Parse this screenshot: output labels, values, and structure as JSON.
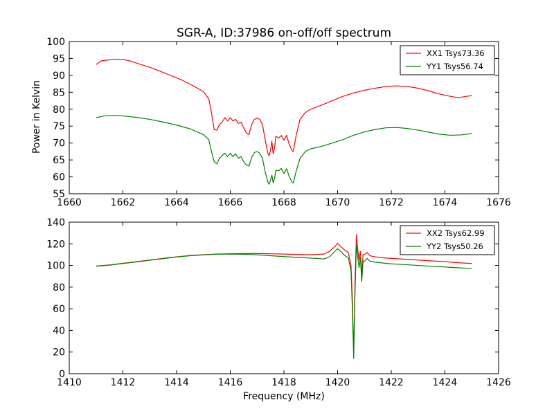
{
  "chart_data": [
    {
      "type": "line",
      "title": "SGR-A, ID:37986 on-off/off spectrum",
      "xlabel": "",
      "ylabel": "Power in Kelvin",
      "xlim": [
        1660,
        1676
      ],
      "ylim": [
        55,
        100
      ],
      "xticks": [
        1660,
        1662,
        1664,
        1666,
        1668,
        1670,
        1672,
        1674,
        1676
      ],
      "yticks": [
        55,
        60,
        65,
        70,
        75,
        80,
        85,
        90,
        95,
        100
      ],
      "grid": false,
      "legend_position": "top-right",
      "series": [
        {
          "name": "XX1 Tsys73.36",
          "color": "#ff0000",
          "points": [
            [
              1661.0,
              93.2
            ],
            [
              1661.2,
              94.3
            ],
            [
              1661.5,
              94.6
            ],
            [
              1661.8,
              94.8
            ],
            [
              1662.0,
              94.7
            ],
            [
              1662.3,
              94.2
            ],
            [
              1662.6,
              93.4
            ],
            [
              1663.0,
              92.4
            ],
            [
              1663.4,
              91.2
            ],
            [
              1663.8,
              89.9
            ],
            [
              1664.2,
              88.6
            ],
            [
              1664.6,
              87.0
            ],
            [
              1665.0,
              85.2
            ],
            [
              1665.2,
              83.0
            ],
            [
              1665.3,
              79.0
            ],
            [
              1665.4,
              74.0
            ],
            [
              1665.5,
              73.8
            ],
            [
              1665.6,
              75.5
            ],
            [
              1665.7,
              76.2
            ],
            [
              1665.8,
              77.5
            ],
            [
              1665.9,
              76.5
            ],
            [
              1666.0,
              77.5
            ],
            [
              1666.1,
              76.5
            ],
            [
              1666.2,
              77.0
            ],
            [
              1666.3,
              75.8
            ],
            [
              1666.4,
              76.2
            ],
            [
              1666.5,
              74.5
            ],
            [
              1666.6,
              73.0
            ],
            [
              1666.7,
              72.5
            ],
            [
              1666.8,
              75.5
            ],
            [
              1666.9,
              77.0
            ],
            [
              1667.0,
              77.3
            ],
            [
              1667.1,
              77.0
            ],
            [
              1667.2,
              75.5
            ],
            [
              1667.3,
              71.0
            ],
            [
              1667.4,
              67.0
            ],
            [
              1667.45,
              66.2
            ],
            [
              1667.5,
              68.0
            ],
            [
              1667.55,
              70.5
            ],
            [
              1667.6,
              66.8
            ],
            [
              1667.65,
              68.5
            ],
            [
              1667.7,
              72.0
            ],
            [
              1667.8,
              71.5
            ],
            [
              1667.9,
              72.2
            ],
            [
              1668.0,
              70.8
            ],
            [
              1668.1,
              72.3
            ],
            [
              1668.2,
              69.5
            ],
            [
              1668.3,
              67.8
            ],
            [
              1668.35,
              67.5
            ],
            [
              1668.45,
              72.0
            ],
            [
              1668.6,
              77.0
            ],
            [
              1668.8,
              79.0
            ],
            [
              1669.0,
              80.0
            ],
            [
              1669.4,
              81.2
            ],
            [
              1669.8,
              82.5
            ],
            [
              1670.2,
              83.8
            ],
            [
              1670.6,
              84.8
            ],
            [
              1671.0,
              85.6
            ],
            [
              1671.4,
              86.2
            ],
            [
              1671.8,
              86.7
            ],
            [
              1672.2,
              86.9
            ],
            [
              1672.6,
              86.7
            ],
            [
              1673.0,
              86.2
            ],
            [
              1673.4,
              85.4
            ],
            [
              1673.8,
              84.5
            ],
            [
              1674.2,
              83.8
            ],
            [
              1674.5,
              83.4
            ],
            [
              1674.8,
              83.8
            ],
            [
              1675.0,
              84.0
            ]
          ]
        },
        {
          "name": "YY1 Tsys56.74",
          "color": "#008000",
          "points": [
            [
              1661.0,
              77.5
            ],
            [
              1661.3,
              78.0
            ],
            [
              1661.7,
              78.2
            ],
            [
              1662.0,
              78.0
            ],
            [
              1662.5,
              77.6
            ],
            [
              1663.0,
              77.0
            ],
            [
              1663.5,
              76.2
            ],
            [
              1664.0,
              75.3
            ],
            [
              1664.5,
              74.2
            ],
            [
              1665.0,
              72.5
            ],
            [
              1665.2,
              71.0
            ],
            [
              1665.3,
              67.5
            ],
            [
              1665.4,
              64.5
            ],
            [
              1665.5,
              63.8
            ],
            [
              1665.6,
              65.5
            ],
            [
              1665.7,
              66.3
            ],
            [
              1665.8,
              67.0
            ],
            [
              1665.9,
              66.0
            ],
            [
              1666.0,
              67.0
            ],
            [
              1666.1,
              66.0
            ],
            [
              1666.2,
              66.8
            ],
            [
              1666.3,
              65.5
            ],
            [
              1666.4,
              66.0
            ],
            [
              1666.5,
              64.5
            ],
            [
              1666.6,
              63.5
            ],
            [
              1666.7,
              63.2
            ],
            [
              1666.8,
              65.8
            ],
            [
              1666.9,
              67.2
            ],
            [
              1667.0,
              67.5
            ],
            [
              1667.1,
              67.0
            ],
            [
              1667.2,
              65.5
            ],
            [
              1667.3,
              61.5
            ],
            [
              1667.4,
              58.5
            ],
            [
              1667.45,
              57.8
            ],
            [
              1667.5,
              59.0
            ],
            [
              1667.55,
              60.5
            ],
            [
              1667.6,
              58.2
            ],
            [
              1667.65,
              59.5
            ],
            [
              1667.7,
              62.0
            ],
            [
              1667.8,
              61.8
            ],
            [
              1667.9,
              62.5
            ],
            [
              1668.0,
              61.0
            ],
            [
              1668.1,
              62.4
            ],
            [
              1668.2,
              60.0
            ],
            [
              1668.3,
              58.5
            ],
            [
              1668.35,
              58.2
            ],
            [
              1668.45,
              61.5
            ],
            [
              1668.6,
              65.5
            ],
            [
              1668.8,
              67.5
            ],
            [
              1669.0,
              68.3
            ],
            [
              1669.4,
              69.0
            ],
            [
              1669.8,
              70.0
            ],
            [
              1670.2,
              71.0
            ],
            [
              1670.6,
              72.3
            ],
            [
              1671.0,
              73.3
            ],
            [
              1671.4,
              74.0
            ],
            [
              1671.8,
              74.5
            ],
            [
              1672.2,
              74.6
            ],
            [
              1672.6,
              74.3
            ],
            [
              1673.0,
              73.8
            ],
            [
              1673.4,
              73.2
            ],
            [
              1673.8,
              72.6
            ],
            [
              1674.2,
              72.3
            ],
            [
              1674.6,
              72.4
            ],
            [
              1675.0,
              72.8
            ]
          ]
        }
      ]
    },
    {
      "type": "line",
      "title": "",
      "xlabel": "Frequency (MHz)",
      "ylabel": "",
      "xlim": [
        1410,
        1426
      ],
      "ylim": [
        0,
        140
      ],
      "xticks": [
        1410,
        1412,
        1414,
        1416,
        1418,
        1420,
        1422,
        1424,
        1426
      ],
      "yticks": [
        0,
        20,
        40,
        60,
        80,
        100,
        120,
        140
      ],
      "grid": false,
      "legend_position": "top-right",
      "series": [
        {
          "name": "XX2 Tsys62.99",
          "color": "#ff0000",
          "points": [
            [
              1411.0,
              99.5
            ],
            [
              1411.5,
              100.5
            ],
            [
              1412.0,
              102.0
            ],
            [
              1412.5,
              103.5
            ],
            [
              1413.0,
              105.0
            ],
            [
              1413.5,
              106.5
            ],
            [
              1414.0,
              108.0
            ],
            [
              1414.5,
              109.2
            ],
            [
              1415.0,
              110.0
            ],
            [
              1415.5,
              110.5
            ],
            [
              1416.0,
              110.8
            ],
            [
              1416.5,
              111.0
            ],
            [
              1417.0,
              111.0
            ],
            [
              1417.5,
              110.8
            ],
            [
              1418.0,
              110.5
            ],
            [
              1418.5,
              110.2
            ],
            [
              1419.0,
              110.0
            ],
            [
              1419.5,
              110.5
            ],
            [
              1419.7,
              113.0
            ],
            [
              1419.9,
              117.5
            ],
            [
              1420.0,
              120.5
            ],
            [
              1420.1,
              118.0
            ],
            [
              1420.25,
              114.5
            ],
            [
              1420.4,
              112.0
            ],
            [
              1420.5,
              100.0
            ],
            [
              1420.55,
              70.0
            ],
            [
              1420.6,
              20.0
            ],
            [
              1420.65,
              85.0
            ],
            [
              1420.7,
              128.5
            ],
            [
              1420.75,
              115.0
            ],
            [
              1420.8,
              105.0
            ],
            [
              1420.85,
              113.0
            ],
            [
              1420.9,
              92.0
            ],
            [
              1420.95,
              110.0
            ],
            [
              1421.0,
              110.0
            ],
            [
              1421.1,
              112.0
            ],
            [
              1421.2,
              109.0
            ],
            [
              1421.4,
              108.0
            ],
            [
              1421.7,
              107.0
            ],
            [
              1422.0,
              106.5
            ],
            [
              1422.5,
              105.8
            ],
            [
              1423.0,
              105.0
            ],
            [
              1423.5,
              104.2
            ],
            [
              1424.0,
              103.5
            ],
            [
              1424.5,
              102.5
            ],
            [
              1425.0,
              101.8
            ]
          ]
        },
        {
          "name": "YY2 Tsys50.26",
          "color": "#008000",
          "points": [
            [
              1411.0,
              99.3
            ],
            [
              1411.5,
              100.3
            ],
            [
              1412.0,
              101.8
            ],
            [
              1412.5,
              103.2
            ],
            [
              1413.0,
              104.8
            ],
            [
              1413.5,
              106.3
            ],
            [
              1414.0,
              107.8
            ],
            [
              1414.5,
              109.0
            ],
            [
              1415.0,
              109.8
            ],
            [
              1415.5,
              110.3
            ],
            [
              1416.0,
              110.5
            ],
            [
              1416.5,
              110.3
            ],
            [
              1417.0,
              109.8
            ],
            [
              1417.5,
              109.0
            ],
            [
              1418.0,
              108.2
            ],
            [
              1418.5,
              107.5
            ],
            [
              1419.0,
              106.8
            ],
            [
              1419.5,
              106.0
            ],
            [
              1419.7,
              108.0
            ],
            [
              1419.9,
              113.0
            ],
            [
              1420.0,
              115.5
            ],
            [
              1420.1,
              113.5
            ],
            [
              1420.25,
              109.5
            ],
            [
              1420.4,
              107.0
            ],
            [
              1420.5,
              95.0
            ],
            [
              1420.55,
              60.0
            ],
            [
              1420.6,
              14.0
            ],
            [
              1420.65,
              75.0
            ],
            [
              1420.7,
              119.0
            ],
            [
              1420.75,
              108.0
            ],
            [
              1420.8,
              98.0
            ],
            [
              1420.85,
              107.0
            ],
            [
              1420.9,
              85.0
            ],
            [
              1420.95,
              104.0
            ],
            [
              1421.0,
              104.0
            ],
            [
              1421.1,
              106.5
            ],
            [
              1421.2,
              104.0
            ],
            [
              1421.4,
              103.0
            ],
            [
              1421.7,
              102.2
            ],
            [
              1422.0,
              101.5
            ],
            [
              1422.5,
              100.8
            ],
            [
              1423.0,
              100.0
            ],
            [
              1423.5,
              99.3
            ],
            [
              1424.0,
              98.6
            ],
            [
              1424.5,
              97.8
            ],
            [
              1425.0,
              97.2
            ]
          ]
        }
      ]
    }
  ]
}
